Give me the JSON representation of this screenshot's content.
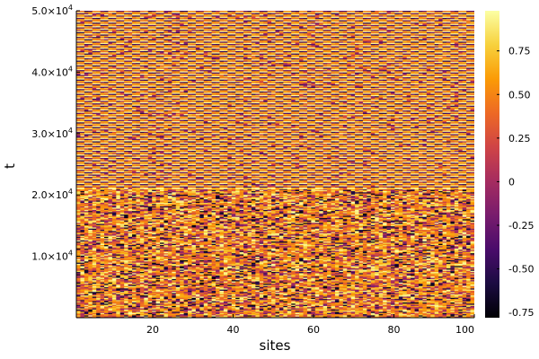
{
  "chart_data": {
    "type": "heatmap",
    "title": "",
    "xlabel": "sites",
    "ylabel": "t",
    "xlim": [
      1,
      100
    ],
    "ylim": [
      0,
      50000
    ],
    "x_ticks": [
      {
        "value": 20,
        "label": "20"
      },
      {
        "value": 40,
        "label": "40"
      },
      {
        "value": 60,
        "label": "60"
      },
      {
        "value": 80,
        "label": "80"
      },
      {
        "value": 100,
        "label": "100"
      }
    ],
    "y_ticks": [
      {
        "value": 10000,
        "mantissa": "1.0×10",
        "exponent": "4"
      },
      {
        "value": 20000,
        "mantissa": "2.0×10",
        "exponent": "4"
      },
      {
        "value": 30000,
        "mantissa": "3.0×10",
        "exponent": "4"
      },
      {
        "value": 40000,
        "mantissa": "4.0×10",
        "exponent": "4"
      },
      {
        "value": 50000,
        "mantissa": "5.0×10",
        "exponent": "4"
      }
    ],
    "colorbar": {
      "colormap": "inferno",
      "range": [
        -0.78,
        0.98
      ],
      "ticks": [
        {
          "value": 0.75,
          "label": "0.75"
        },
        {
          "value": 0.5,
          "label": "0.50"
        },
        {
          "value": 0.25,
          "label": "0.25"
        },
        {
          "value": 0,
          "label": "0"
        },
        {
          "value": -0.25,
          "label": "-0.25"
        },
        {
          "value": -0.5,
          "label": "-0.50"
        },
        {
          "value": -0.75,
          "label": "-0.75"
        }
      ]
    },
    "regimes": [
      {
        "t_range": [
          0,
          21000
        ],
        "pattern": "disordered",
        "value_range": [
          -0.78,
          0.98
        ]
      },
      {
        "t_range": [
          21000,
          50000
        ],
        "pattern": "periodic-checkerboard",
        "column_period_sites": 4,
        "value_range": [
          -0.6,
          0.98
        ]
      }
    ],
    "grid": false
  },
  "colors": {
    "background": "#ffffff",
    "axis": "#000000",
    "colormap_stops": [
      "#000004",
      "#1b0c41",
      "#4a0c6b",
      "#781c6d",
      "#a52c60",
      "#cf4446",
      "#ed6925",
      "#fb9b06",
      "#f7d13d",
      "#fcffa4"
    ]
  }
}
